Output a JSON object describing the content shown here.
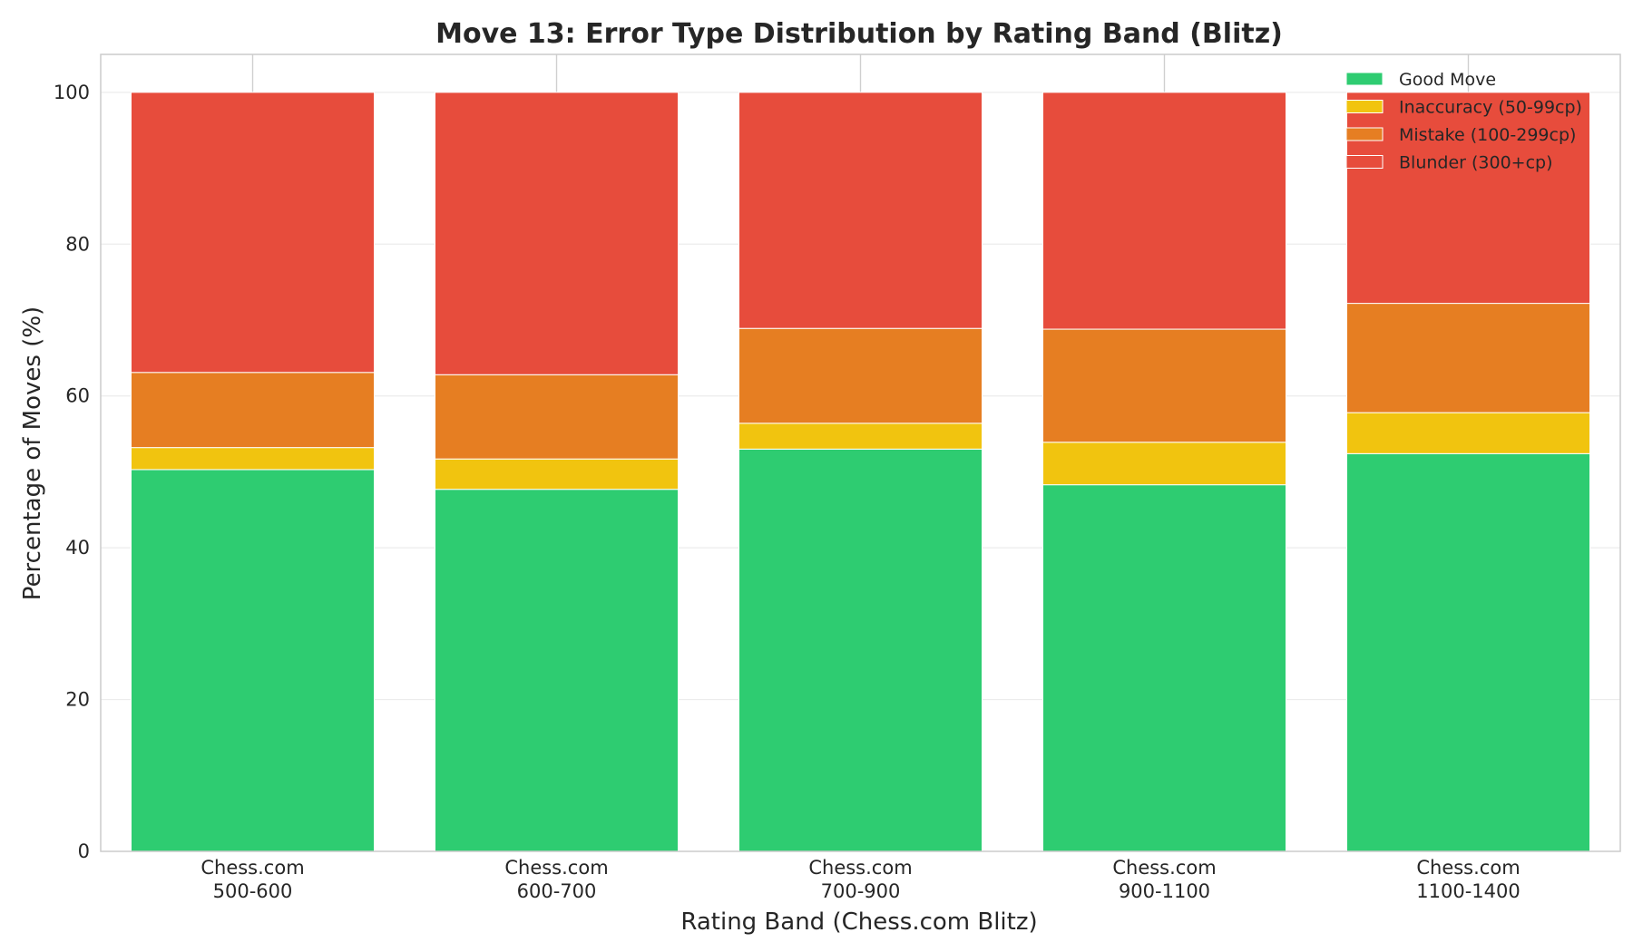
{
  "chart_data": {
    "type": "bar",
    "stacked": true,
    "title": "Move 13: Error Type Distribution by Rating Band (Blitz)",
    "xlabel": "Rating Band (Chess.com Blitz)",
    "ylabel": "Percentage of Moves (%)",
    "ylim": [
      0,
      105
    ],
    "yticks": [
      0,
      20,
      40,
      60,
      80,
      100
    ],
    "categories": [
      [
        "Chess.com",
        "500-600"
      ],
      [
        "Chess.com",
        "600-700"
      ],
      [
        "Chess.com",
        "700-900"
      ],
      [
        "Chess.com",
        "900-1100"
      ],
      [
        "Chess.com",
        "1100-1400"
      ]
    ],
    "series": [
      {
        "name": "Good Move",
        "color": "#2ecc71",
        "values": [
          50.3,
          47.7,
          53.0,
          48.3,
          52.4
        ]
      },
      {
        "name": "Inaccuracy (50-99cp)",
        "color": "#f1c40f",
        "values": [
          2.9,
          4.0,
          3.4,
          5.6,
          5.4
        ]
      },
      {
        "name": "Mistake (100-299cp)",
        "color": "#e67e22",
        "values": [
          9.9,
          11.1,
          12.5,
          14.9,
          14.4
        ]
      },
      {
        "name": "Blunder (300+cp)",
        "color": "#e74c3c",
        "values": [
          36.9,
          37.2,
          31.1,
          31.2,
          27.8
        ]
      }
    ],
    "grid": true,
    "legend_position": "top-right"
  }
}
